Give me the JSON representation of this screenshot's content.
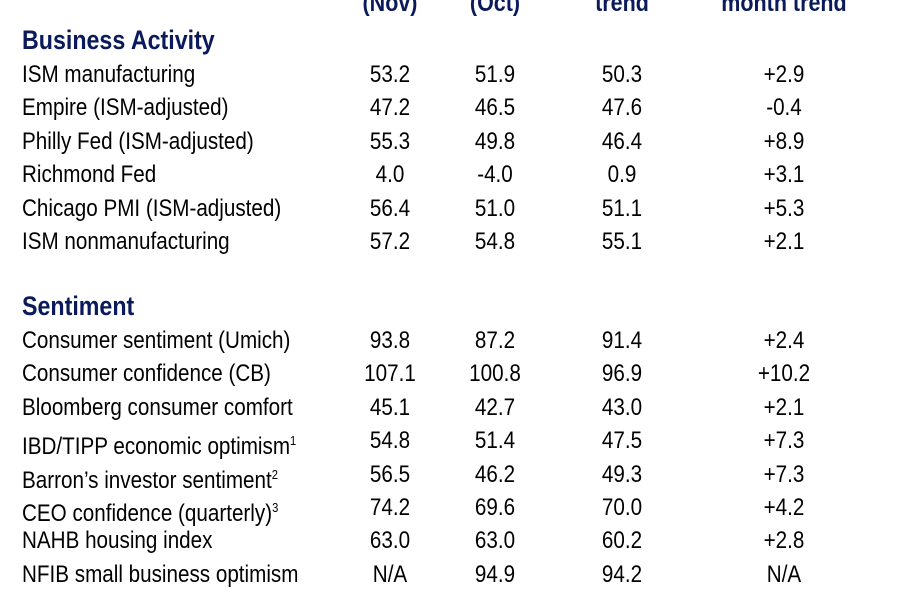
{
  "header": {
    "col1": "(Nov)",
    "col2": "(Oct)",
    "col3": "trend",
    "col4": "month trend"
  },
  "sections": [
    {
      "title": "Business Activity",
      "rows": [
        {
          "label": "ISM manufacturing",
          "sup": "",
          "nov": "53.2",
          "oct": "51.9",
          "trend": "50.3",
          "month_trend": "+2.9"
        },
        {
          "label": "Empire (ISM-adjusted)",
          "sup": "",
          "nov": "47.2",
          "oct": "46.5",
          "trend": "47.6",
          "month_trend": "-0.4"
        },
        {
          "label": "Philly Fed (ISM-adjusted)",
          "sup": "",
          "nov": "55.3",
          "oct": "49.8",
          "trend": "46.4",
          "month_trend": "+8.9"
        },
        {
          "label": "Richmond Fed",
          "sup": "",
          "nov": "4.0",
          "oct": "-4.0",
          "trend": "0.9",
          "month_trend": "+3.1"
        },
        {
          "label": "Chicago PMI (ISM-adjusted)",
          "sup": "",
          "nov": "56.4",
          "oct": "51.0",
          "trend": "51.1",
          "month_trend": "+5.3"
        },
        {
          "label": "ISM nonmanufacturing",
          "sup": "",
          "nov": "57.2",
          "oct": "54.8",
          "trend": "55.1",
          "month_trend": "+2.1"
        }
      ]
    },
    {
      "title": "Sentiment",
      "rows": [
        {
          "label": "Consumer sentiment (Umich)",
          "sup": "",
          "nov": "93.8",
          "oct": "87.2",
          "trend": "91.4",
          "month_trend": "+2.4"
        },
        {
          "label": "Consumer confidence (CB)",
          "sup": "",
          "nov": "107.1",
          "oct": "100.8",
          "trend": "96.9",
          "month_trend": "+10.2"
        },
        {
          "label": "Bloomberg consumer comfort",
          "sup": "",
          "nov": "45.1",
          "oct": "42.7",
          "trend": "43.0",
          "month_trend": "+2.1"
        },
        {
          "label": "IBD/TIPP economic optimism",
          "sup": "1",
          "nov": "54.8",
          "oct": "51.4",
          "trend": "47.5",
          "month_trend": "+7.3"
        },
        {
          "label": "Barron’s investor sentiment",
          "sup": "2",
          "nov": "56.5",
          "oct": "46.2",
          "trend": "49.3",
          "month_trend": "+7.3"
        },
        {
          "label": "CEO confidence (quarterly)",
          "sup": "3",
          "nov": "74.2",
          "oct": "69.6",
          "trend": "70.0",
          "month_trend": "+4.2"
        },
        {
          "label": "NAHB housing index",
          "sup": "",
          "nov": "63.0",
          "oct": "63.0",
          "trend": "60.2",
          "month_trend": "+2.8"
        },
        {
          "label": "NFIB small business optimism",
          "sup": "",
          "nov": "N/A",
          "oct": "94.9",
          "trend": "94.2",
          "month_trend": "N/A"
        }
      ]
    }
  ]
}
